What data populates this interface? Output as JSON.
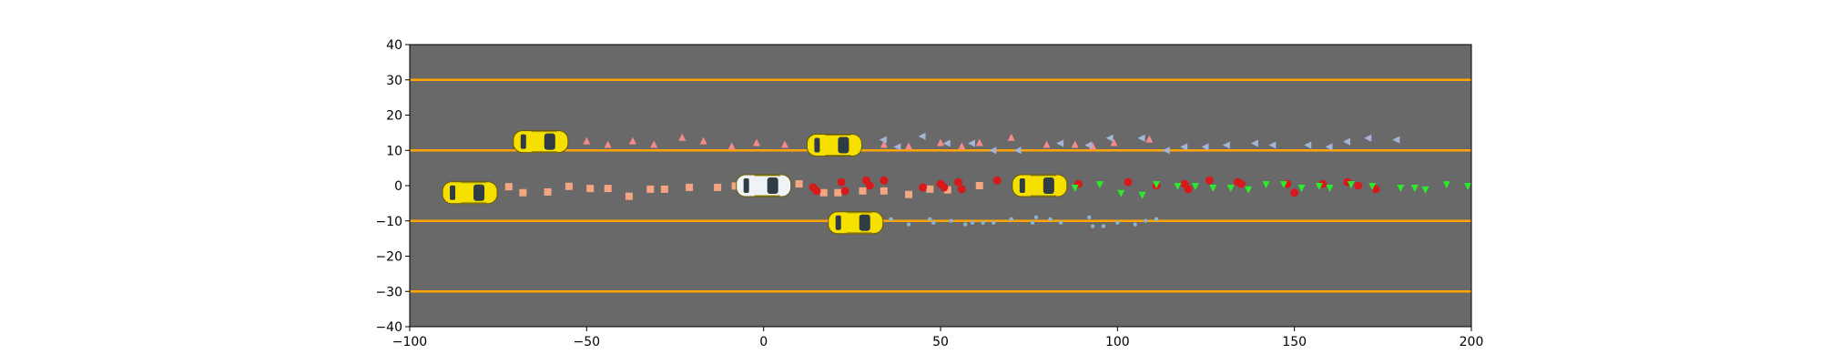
{
  "chart_data": {
    "type": "scatter",
    "title": "",
    "xlabel": "",
    "ylabel": "",
    "xlim": [
      -100,
      200
    ],
    "ylim": [
      -40,
      40
    ],
    "grid": false,
    "x_ticks": [
      -100,
      -50,
      0,
      50,
      100,
      150,
      200
    ],
    "y_ticks": [
      -40,
      -30,
      -20,
      -10,
      0,
      10,
      20,
      30,
      40
    ],
    "x_tick_labels": [
      "−100",
      "−50",
      "0",
      "50",
      "100",
      "150",
      "200"
    ],
    "y_tick_labels": [
      "−40",
      "−30",
      "−20",
      "−10",
      "0",
      "10",
      "20",
      "30",
      "40"
    ],
    "road_color": "#696969",
    "lane_line_color": "#ffa500",
    "lane_lines_y": [
      -30,
      -10,
      10,
      30
    ],
    "vehicles": [
      {
        "kind": "ego",
        "color": "#f0f3f5",
        "x": 0,
        "y": 0
      },
      {
        "kind": "other",
        "color": "#f5e000",
        "x": -83,
        "y": -2
      },
      {
        "kind": "other",
        "color": "#f5e000",
        "x": -63,
        "y": 12.5
      },
      {
        "kind": "other",
        "color": "#f5e000",
        "x": 20,
        "y": 11.5
      },
      {
        "kind": "other",
        "color": "#f5e000",
        "x": 26,
        "y": -10.5
      },
      {
        "kind": "other",
        "color": "#f5e000",
        "x": 78,
        "y": 0
      }
    ],
    "series": [
      {
        "marker": "square",
        "color": "#f4a582",
        "x": [
          -72,
          -68,
          -61,
          -55,
          -49,
          -44,
          -38,
          -32,
          -28,
          -21,
          -13,
          -8,
          10,
          17,
          21,
          28,
          34,
          41,
          47,
          52,
          61
        ],
        "y": [
          -0.3,
          -2,
          -1.8,
          -0.2,
          -0.8,
          -0.8,
          -3,
          -1,
          -1,
          -0.5,
          -0.5,
          -0.1,
          0.5,
          -2,
          -2,
          -1.5,
          -1.5,
          -2.5,
          -1,
          -1.2,
          0
        ]
      },
      {
        "marker": "triangle-up",
        "color": "#f48a8a",
        "x": [
          -50,
          -44,
          -37,
          -31,
          -23,
          -17,
          -9,
          -2,
          6,
          34,
          41,
          50,
          56,
          61,
          70,
          80,
          88,
          93,
          99,
          109
        ],
        "y": [
          12.5,
          11.5,
          12.5,
          11.5,
          13.5,
          12.5,
          11,
          12,
          11.5,
          11.5,
          11,
          12,
          11,
          12,
          13.5,
          11.5,
          11.5,
          11,
          12,
          13
        ]
      },
      {
        "marker": "circle",
        "color": "#d7191c",
        "x": [
          14,
          15,
          22,
          23,
          29,
          30,
          34,
          45,
          50,
          51,
          55,
          56,
          66,
          89,
          103,
          111,
          119,
          120,
          126,
          134,
          135,
          148,
          150,
          158,
          165,
          168,
          173
        ],
        "y": [
          -0.5,
          -1.5,
          1,
          -1.5,
          1.5,
          0,
          1.5,
          -0.5,
          0.5,
          -0.5,
          1,
          -1,
          1.5,
          0.5,
          1,
          0,
          0.5,
          -1,
          1.5,
          1,
          0.5,
          0.5,
          -2,
          0.5,
          1,
          0,
          -1
        ]
      },
      {
        "marker": "triangle-left",
        "color": "#a3b5d9",
        "x": [
          34,
          38,
          45,
          52,
          59,
          65,
          72,
          84,
          92,
          98,
          107,
          114,
          119,
          125,
          131,
          139,
          144,
          154,
          160,
          165,
          171,
          179
        ],
        "y": [
          13,
          11,
          14,
          12,
          12,
          10,
          10,
          12,
          11.5,
          13.5,
          13.5,
          10,
          11,
          11,
          11.5,
          12,
          11.5,
          11.5,
          11,
          12.5,
          13.5,
          13
        ]
      },
      {
        "marker": "dot",
        "color": "#8ab3cc",
        "x": [
          36,
          41,
          47,
          48,
          53,
          57,
          59,
          62,
          65,
          70,
          76,
          77,
          81,
          84,
          92,
          93,
          96,
          100,
          105,
          108,
          111
        ],
        "y": [
          -9.5,
          -11,
          -9.5,
          -10.5,
          -10,
          -11,
          -10.5,
          -10.5,
          -10.5,
          -9.5,
          -10.5,
          -9,
          -9.5,
          -10.5,
          -9,
          -11.5,
          -11.5,
          -10.5,
          -11,
          -10,
          -9.5
        ]
      },
      {
        "marker": "triangle-down",
        "color": "#2bea2b",
        "x": [
          88,
          95,
          101,
          107,
          111,
          117,
          122,
          127,
          132,
          137,
          142,
          147,
          152,
          157,
          160,
          166,
          172,
          180,
          184,
          187,
          193,
          199
        ],
        "y": [
          -0.5,
          0.5,
          -2,
          -2.5,
          0.5,
          0,
          0,
          -0.5,
          -0.5,
          -1,
          0.5,
          0.5,
          -0.5,
          0,
          -0.5,
          0.5,
          0,
          -0.5,
          -0.5,
          -1,
          0.5,
          0
        ]
      }
    ]
  }
}
